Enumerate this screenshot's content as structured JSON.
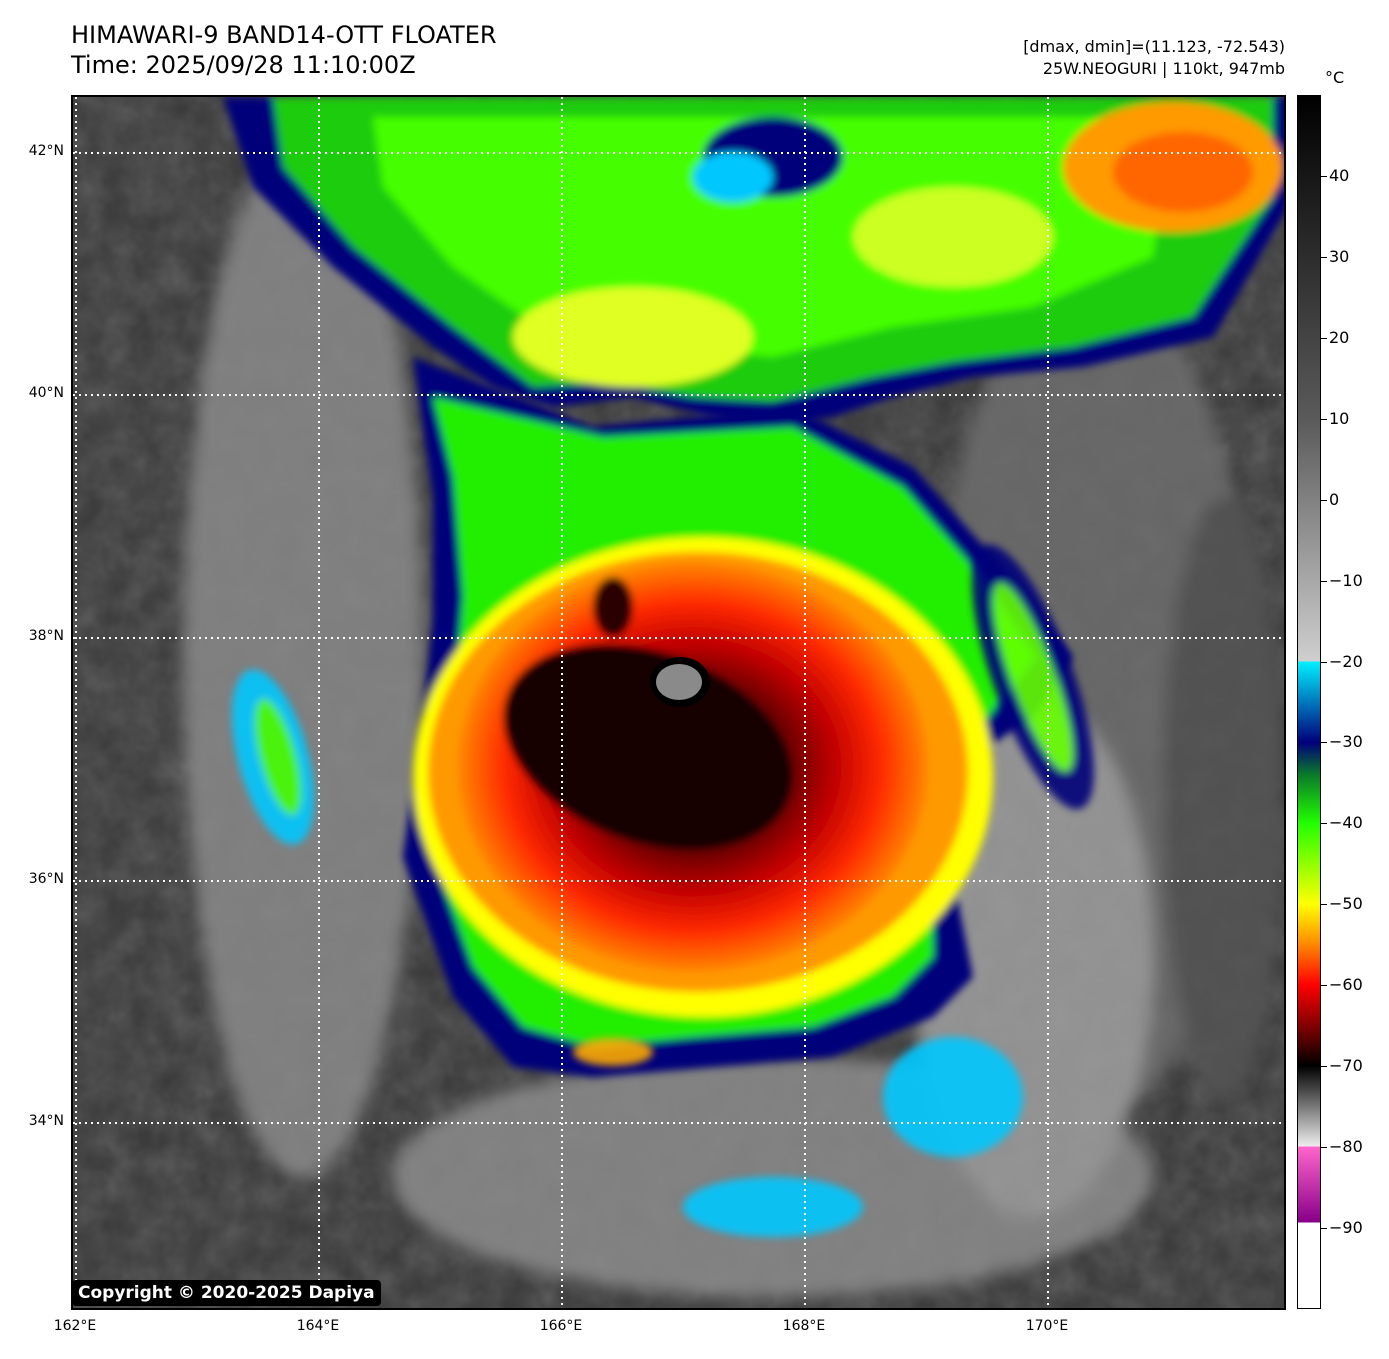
{
  "header": {
    "title_line1": "HIMAWARI-9 BAND14-OTT FLOATER",
    "title_line2": "Time: 2025/09/28 11:10:00Z",
    "info_line1": "[dmax, dmin]=(11.123, -72.543)",
    "info_line2": "25W.NEOGURI | 110kt, 947mb"
  },
  "map": {
    "lat_labels": [
      "42°N",
      "40°N",
      "38°N",
      "36°N",
      "34°N"
    ],
    "lon_labels": [
      "162°E",
      "164°E",
      "166°E",
      "168°E",
      "170°E"
    ],
    "storm_name": "25W.NEOGURI",
    "intensity": "110kt",
    "pressure": "947mb",
    "eye_lat": 37.6,
    "eye_lon": 167.0
  },
  "copyright": "Copyright © 2020-2025 Dapiya",
  "colorbar": {
    "unit": "°C",
    "ticks": [
      "40",
      "30",
      "20",
      "10",
      "0",
      "−10",
      "−20",
      "−30",
      "−40",
      "−50",
      "−60",
      "−70",
      "−80",
      "−90"
    ],
    "range": [
      -100,
      50
    ],
    "stops": [
      {
        "t": 50,
        "color": "#000000"
      },
      {
        "t": 10,
        "color": "#5a5a5a"
      },
      {
        "t": -20,
        "color": "#cfcfcf"
      },
      {
        "t": -20.01,
        "color": "#00f0ff"
      },
      {
        "t": -30,
        "color": "#00007a"
      },
      {
        "t": -34,
        "color": "#0a7a2a"
      },
      {
        "t": -40,
        "color": "#22ff00"
      },
      {
        "t": -50,
        "color": "#ffff00"
      },
      {
        "t": -55,
        "color": "#ff8800"
      },
      {
        "t": -60,
        "color": "#ff0000"
      },
      {
        "t": -66,
        "color": "#6a0000"
      },
      {
        "t": -70,
        "color": "#000000"
      },
      {
        "t": -80,
        "color": "#eeeeee"
      },
      {
        "t": -80.01,
        "color": "#ff66cc"
      },
      {
        "t": -89.4,
        "color": "#880088"
      },
      {
        "t": -89.41,
        "color": "#ffffff"
      },
      {
        "t": -100,
        "color": "#ffffff"
      }
    ]
  }
}
